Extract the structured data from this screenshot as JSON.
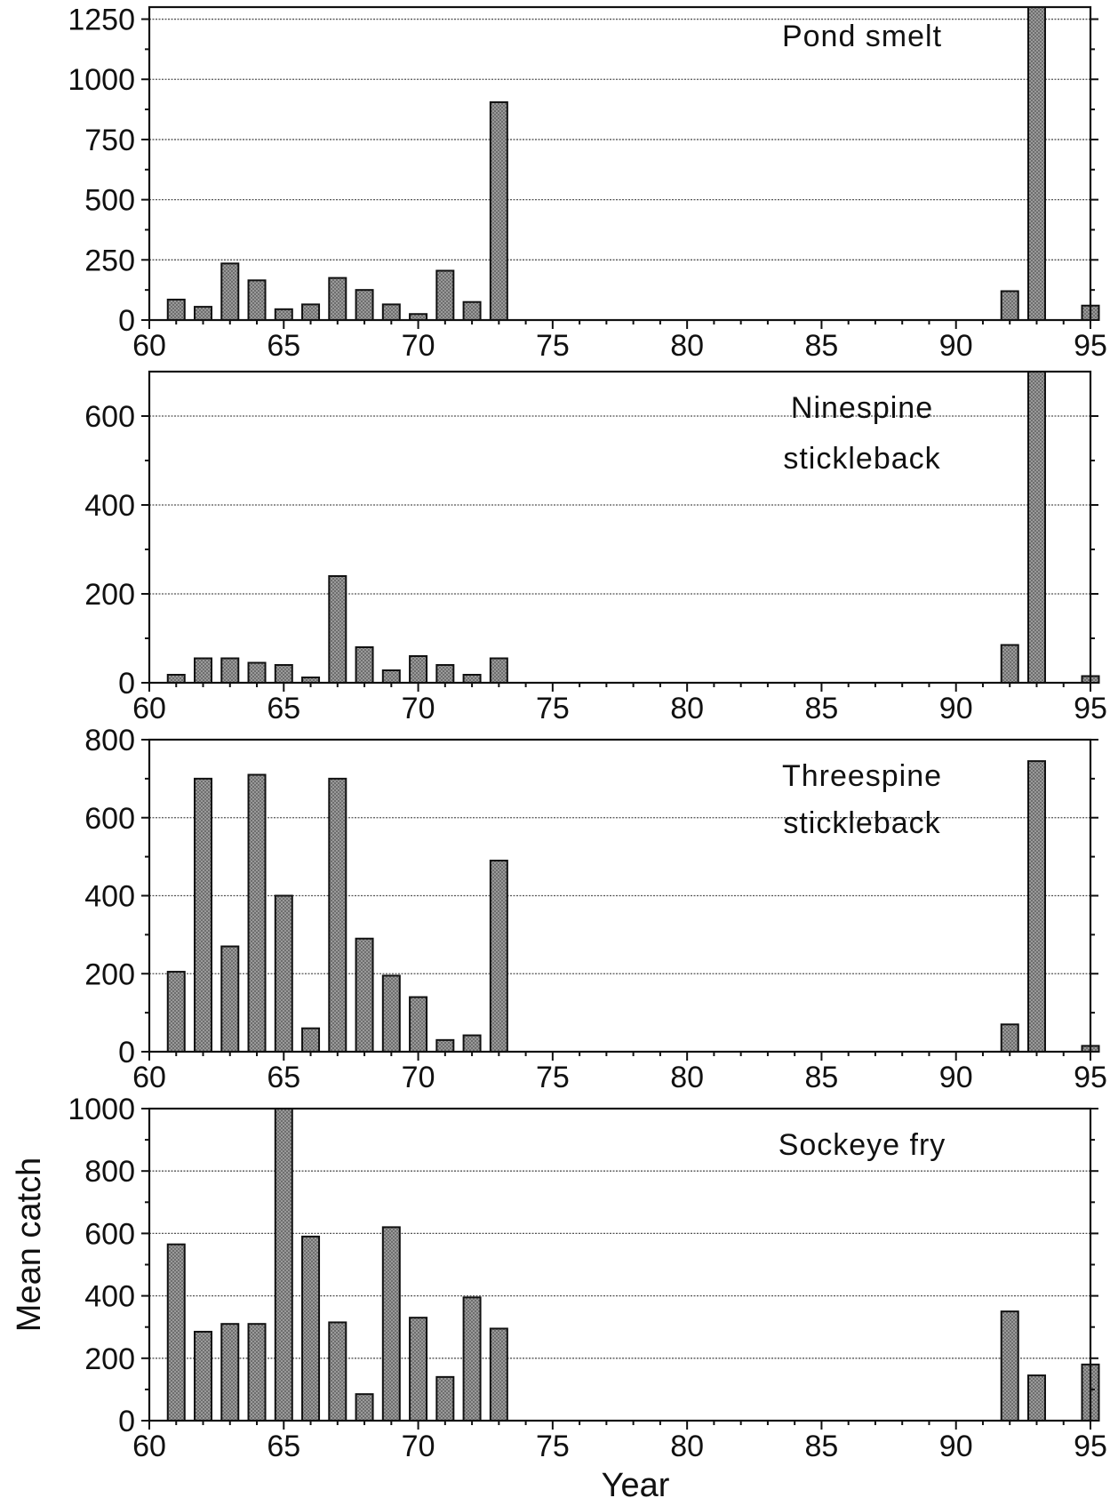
{
  "colors": {
    "bar_fill": "#8c8c8c",
    "bar_stroke": "#111111",
    "background": "#ffffff"
  },
  "xlabel": "Year",
  "ylabel": "Mean catch",
  "chart_data": [
    {
      "type": "bar",
      "title": "Pond smelt",
      "xlim": [
        60,
        95
      ],
      "xticks": [
        60,
        65,
        70,
        75,
        80,
        85,
        90,
        95
      ],
      "ylim": [
        0,
        1300
      ],
      "yticks": [
        0,
        250,
        500,
        750,
        1000,
        1250
      ],
      "grid": true,
      "x": [
        61,
        62,
        63,
        64,
        65,
        66,
        67,
        68,
        69,
        70,
        71,
        72,
        73,
        92,
        93,
        95
      ],
      "values": [
        85,
        55,
        235,
        165,
        45,
        65,
        175,
        125,
        65,
        25,
        205,
        75,
        905,
        120,
        1300,
        60
      ]
    },
    {
      "type": "bar",
      "title": "Ninespine stickleback",
      "title_lines": [
        "Ninespine",
        "stickleback"
      ],
      "xlim": [
        60,
        95
      ],
      "xticks": [
        60,
        65,
        70,
        75,
        80,
        85,
        90,
        95
      ],
      "ylim": [
        0,
        700
      ],
      "yticks": [
        0,
        200,
        400,
        600
      ],
      "grid": true,
      "x": [
        61,
        62,
        63,
        64,
        65,
        66,
        67,
        68,
        69,
        70,
        71,
        72,
        73,
        92,
        93,
        95
      ],
      "values": [
        18,
        55,
        55,
        45,
        40,
        12,
        240,
        80,
        28,
        60,
        40,
        18,
        55,
        85,
        700,
        15
      ]
    },
    {
      "type": "bar",
      "title": "Threespine stickleback",
      "title_lines": [
        "Threespine",
        "stickleback"
      ],
      "xlim": [
        60,
        95
      ],
      "xticks": [
        60,
        65,
        70,
        75,
        80,
        85,
        90,
        95
      ],
      "ylim": [
        0,
        800
      ],
      "yticks": [
        0,
        200,
        400,
        600,
        800
      ],
      "grid": true,
      "x": [
        61,
        62,
        63,
        64,
        65,
        66,
        67,
        68,
        69,
        70,
        71,
        72,
        73,
        92,
        93,
        95
      ],
      "values": [
        205,
        700,
        270,
        710,
        400,
        60,
        700,
        290,
        195,
        140,
        30,
        42,
        490,
        70,
        745,
        15
      ]
    },
    {
      "type": "bar",
      "title": "Sockeye fry",
      "xlim": [
        60,
        95
      ],
      "xticks": [
        60,
        65,
        70,
        75,
        80,
        85,
        90,
        95
      ],
      "ylim": [
        0,
        1000
      ],
      "yticks": [
        0,
        200,
        400,
        600,
        800,
        1000
      ],
      "grid": true,
      "x": [
        61,
        62,
        63,
        64,
        65,
        66,
        67,
        68,
        69,
        70,
        71,
        72,
        73,
        92,
        93,
        95
      ],
      "values": [
        565,
        285,
        310,
        310,
        1000,
        590,
        315,
        85,
        620,
        330,
        140,
        395,
        295,
        350,
        145,
        180
      ]
    }
  ]
}
